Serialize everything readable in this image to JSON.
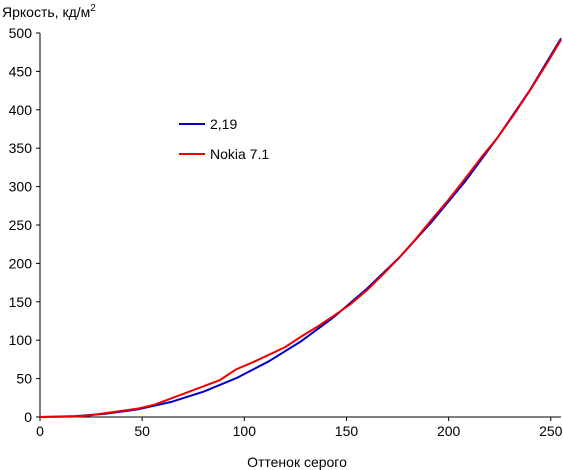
{
  "chart_data": {
    "type": "line",
    "title": "",
    "ylabel": "Яркость, кд/м",
    "ylabel_superscript": "2",
    "xlabel": "Оттенок серого",
    "xlim": [
      0,
      255
    ],
    "ylim": [
      0,
      500
    ],
    "x_ticks": [
      0,
      50,
      100,
      150,
      200,
      250
    ],
    "y_ticks": [
      0,
      50,
      100,
      150,
      200,
      250,
      300,
      350,
      400,
      450,
      500
    ],
    "grid": false,
    "legend_position": "upper-left-inside",
    "series": [
      {
        "name": "2,19",
        "color": "#0000cc",
        "x": [
          0,
          16,
          32,
          48,
          64,
          80,
          96,
          112,
          128,
          144,
          160,
          176,
          192,
          208,
          224,
          240,
          255
        ],
        "y": [
          0,
          0.9,
          4.2,
          10,
          19.5,
          33,
          50.5,
          72.5,
          99,
          130.5,
          167,
          208,
          255,
          306.5,
          364,
          426.5,
          493
        ]
      },
      {
        "name": "Nokia 7.1",
        "color": "#ee0000",
        "x": [
          0,
          16,
          24,
          32,
          40,
          48,
          56,
          64,
          72,
          80,
          88,
          96,
          104,
          112,
          120,
          128,
          136,
          144,
          152,
          160,
          168,
          176,
          184,
          192,
          200,
          208,
          216,
          224,
          232,
          240,
          248,
          255
        ],
        "y": [
          0,
          0.5,
          2,
          5,
          8,
          11,
          16,
          24,
          32,
          40,
          48,
          62,
          71,
          81,
          91,
          105,
          118,
          132,
          147,
          165,
          186,
          208,
          232,
          258,
          283,
          310,
          338,
          364,
          394,
          426,
          460,
          491
        ]
      }
    ]
  }
}
